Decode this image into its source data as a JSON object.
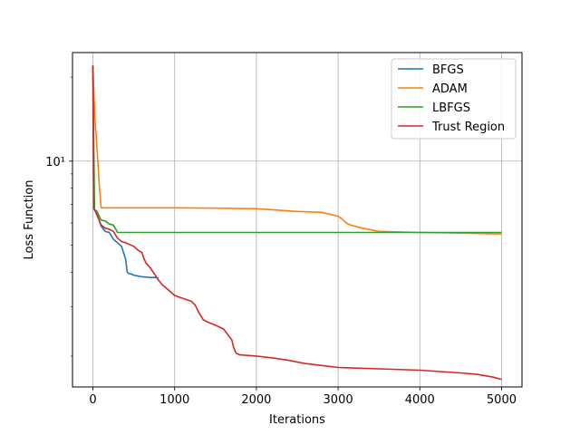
{
  "chart_data": {
    "type": "line",
    "title": "",
    "xlabel": "Iterations",
    "ylabel": "Loss Function",
    "xlim": [
      -250,
      5250
    ],
    "ylim": [
      1.55,
      24.5
    ],
    "yscale": "log",
    "grid": true,
    "legend_position": "top-right",
    "x_ticks": [
      0,
      1000,
      2000,
      3000,
      4000,
      5000
    ],
    "x_tick_labels": [
      "0",
      "1000",
      "2000",
      "3000",
      "4000",
      "5000"
    ],
    "y_ticks": [
      10
    ],
    "y_tick_labels": [
      "10¹"
    ],
    "series": [
      {
        "name": "BFGS",
        "color": "#1f77b4",
        "x": [
          0,
          10,
          30,
          60,
          100,
          150,
          200,
          250,
          300,
          350,
          400,
          420,
          440,
          460,
          500,
          600,
          700,
          800
        ],
        "y": [
          22.0,
          6.75,
          6.6,
          6.3,
          5.85,
          5.6,
          5.55,
          5.25,
          5.1,
          4.95,
          4.45,
          4.0,
          3.95,
          3.95,
          3.9,
          3.85,
          3.83,
          3.82
        ]
      },
      {
        "name": "ADAM",
        "color": "#ff7f0e",
        "x": [
          0,
          20,
          50,
          80,
          100,
          500,
          1000,
          1500,
          2000,
          2500,
          2800,
          3000,
          3050,
          3100,
          3150,
          3300,
          3500,
          4000,
          4500,
          5000
        ],
        "y": [
          22.0,
          15.0,
          11.0,
          8.0,
          6.8,
          6.8,
          6.8,
          6.78,
          6.75,
          6.6,
          6.55,
          6.35,
          6.2,
          6.0,
          5.9,
          5.75,
          5.6,
          5.55,
          5.52,
          5.48
        ]
      },
      {
        "name": "LBFGS",
        "color": "#2ca02c",
        "x": [
          0,
          20,
          50,
          80,
          100,
          150,
          200,
          250,
          280,
          300,
          500,
          1000,
          2000,
          3000,
          4000,
          5000
        ],
        "y": [
          22.0,
          6.7,
          6.6,
          6.3,
          6.15,
          6.1,
          5.95,
          5.9,
          5.7,
          5.55,
          5.55,
          5.55,
          5.55,
          5.55,
          5.55,
          5.55
        ]
      },
      {
        "name": "Trust Region",
        "color": "#d62728",
        "x": [
          0,
          10,
          30,
          60,
          100,
          150,
          200,
          250,
          300,
          350,
          400,
          500,
          550,
          600,
          620,
          650,
          700,
          750,
          800,
          850,
          900,
          1000,
          1100,
          1200,
          1250,
          1300,
          1350,
          1400,
          1500,
          1600,
          1700,
          1720,
          1750,
          1800,
          2000,
          2200,
          2400,
          2600,
          2800,
          3000,
          3500,
          4000,
          4500,
          4700,
          4900,
          5000
        ],
        "y": [
          22.0,
          6.8,
          6.6,
          6.3,
          5.9,
          5.75,
          5.7,
          5.6,
          5.3,
          5.15,
          5.1,
          4.95,
          4.8,
          4.7,
          4.5,
          4.3,
          4.15,
          3.95,
          3.75,
          3.6,
          3.5,
          3.3,
          3.22,
          3.15,
          3.05,
          2.85,
          2.7,
          2.65,
          2.58,
          2.5,
          2.28,
          2.15,
          2.05,
          2.02,
          2.0,
          1.97,
          1.93,
          1.88,
          1.85,
          1.82,
          1.8,
          1.78,
          1.74,
          1.72,
          1.68,
          1.65
        ]
      }
    ]
  }
}
